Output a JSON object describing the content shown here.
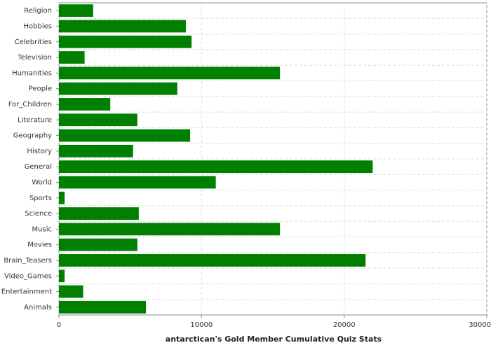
{
  "chart_data": {
    "type": "hbar",
    "title": "antarctican's Gold Member Cumulative Quiz Stats",
    "categories": [
      "Religion",
      "Hobbies",
      "Celebrities",
      "Television",
      "Humanities",
      "People",
      "For_Children",
      "Literature",
      "Geography",
      "History",
      "General",
      "World",
      "Sports",
      "Science",
      "Music",
      "Movies",
      "Brain_Teasers",
      "Video_Games",
      "Entertainment",
      "Animals"
    ],
    "values": [
      2400,
      8900,
      9300,
      1800,
      15500,
      8300,
      3600,
      5500,
      9200,
      5200,
      22000,
      11000,
      400,
      5600,
      15500,
      5500,
      21500,
      400,
      1700,
      6100
    ],
    "color": "#007f00",
    "xlim": [
      0,
      30000
    ],
    "xticks": [
      0,
      10000,
      20000,
      30000
    ],
    "grid": true
  }
}
